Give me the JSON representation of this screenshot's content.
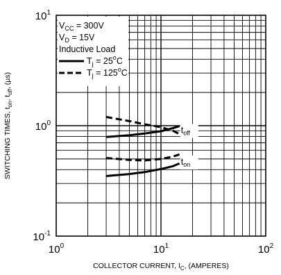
{
  "chart_data": {
    "type": "line",
    "x_scale": "log",
    "y_scale": "log",
    "xlim": [
      1,
      100
    ],
    "ylim": [
      0.1,
      10
    ],
    "grid": true,
    "legend_placement": "top-left",
    "x_ticks": [
      {
        "value": 1,
        "base": "10",
        "exp": "0"
      },
      {
        "value": 10,
        "base": "10",
        "exp": "1"
      },
      {
        "value": 100,
        "base": "10",
        "exp": "2"
      }
    ],
    "y_ticks": [
      {
        "value": 0.1,
        "base": "10",
        "exp": "-1"
      },
      {
        "value": 1,
        "base": "10",
        "exp": "0"
      },
      {
        "value": 10,
        "base": "10",
        "exp": "1"
      }
    ],
    "xlabel": {
      "pre": "COLLECTOR CURRENT, I",
      "sub": "C",
      "post": ", (AMPERES)"
    },
    "ylabel": {
      "pre": "SWITCHING TIMES, t",
      "sub1": "on",
      "mid": ", t",
      "sub2": "off",
      "post": ", (µs)"
    },
    "conditions": [
      {
        "pre": "V",
        "sub": "CC",
        "post": " = 300V"
      },
      {
        "pre": "V",
        "sub": "D",
        "post": " = 15V"
      },
      {
        "pre": "Inductive Load",
        "sub": "",
        "post": ""
      }
    ],
    "legend": [
      {
        "style": "solid",
        "pre": "T",
        "sub": "j",
        "post": " = 25",
        "sup": "o",
        "tail": "C"
      },
      {
        "style": "dashed",
        "pre": "T",
        "sub": "j",
        "post": " = 125",
        "sup": "o",
        "tail": "C"
      }
    ],
    "curve_labels": [
      {
        "id": "toff",
        "pre": "t",
        "sub": "off",
        "x": 15.5,
        "y": 0.87
      },
      {
        "id": "ton",
        "pre": "t",
        "sub": "on",
        "x": 15.5,
        "y": 0.45
      }
    ],
    "series": [
      {
        "group": "toff",
        "style": "solid",
        "x": [
          3,
          5,
          7,
          10,
          13,
          15
        ],
        "y": [
          0.79,
          0.82,
          0.85,
          0.89,
          0.95,
          0.99
        ]
      },
      {
        "group": "toff",
        "style": "dashed",
        "x": [
          3,
          5,
          7,
          10,
          13,
          15
        ],
        "y": [
          1.2,
          1.1,
          1.03,
          0.97,
          0.9,
          0.84
        ]
      },
      {
        "group": "ton",
        "style": "solid",
        "x": [
          3,
          5,
          7,
          10,
          13,
          15
        ],
        "y": [
          0.35,
          0.365,
          0.38,
          0.405,
          0.43,
          0.455
        ]
      },
      {
        "group": "ton",
        "style": "dashed",
        "x": [
          3,
          5,
          7,
          10,
          13,
          15
        ],
        "y": [
          0.51,
          0.49,
          0.485,
          0.5,
          0.525,
          0.55
        ]
      }
    ]
  }
}
